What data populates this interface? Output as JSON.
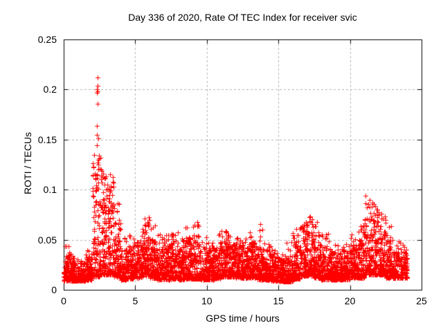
{
  "chart_data": {
    "type": "scatter",
    "title": "Day 336 of 2020, Rate Of TEC Index for receiver svic",
    "xlabel": "GPS time / hours",
    "ylabel": "ROTI / TECUs",
    "series_name": "ROTI",
    "xlim": [
      0,
      25
    ],
    "ylim": [
      0,
      0.25
    ],
    "xticks": [
      0,
      5,
      10,
      15,
      20,
      25
    ],
    "xtick_labels": [
      "0",
      "5",
      "10",
      "15",
      "20",
      "25"
    ],
    "yticks": [
      0,
      0.05,
      0.1,
      0.15,
      0.2,
      0.25
    ],
    "ytick_labels": [
      "0",
      "0.05",
      "0.1",
      "0.15",
      "0.2",
      "0.25"
    ],
    "grid": {
      "show": true,
      "color": "#b0b0b0",
      "dash": [
        3,
        3
      ]
    },
    "marker": {
      "shape": "plus",
      "color": "#ff0000",
      "size": 7
    },
    "legend": null,
    "seed": 336,
    "bin_format": [
      "t0_hours",
      "t1_hours",
      "n_points",
      "bulk_min",
      "bulk_max",
      "peak_max",
      "peak_fraction"
    ],
    "envelope_bins": [
      [
        0.0,
        0.5,
        100,
        0.009,
        0.038,
        0.044,
        0.06
      ],
      [
        0.5,
        1.0,
        100,
        0.009,
        0.03,
        0.036,
        0.05
      ],
      [
        1.0,
        1.5,
        100,
        0.009,
        0.027,
        0.033,
        0.05
      ],
      [
        1.5,
        2.0,
        100,
        0.01,
        0.032,
        0.04,
        0.06
      ],
      [
        2.0,
        2.5,
        110,
        0.013,
        0.085,
        0.135,
        0.22
      ],
      [
        2.5,
        3.0,
        115,
        0.015,
        0.082,
        0.122,
        0.22
      ],
      [
        3.0,
        3.5,
        115,
        0.015,
        0.078,
        0.116,
        0.18
      ],
      [
        3.5,
        4.0,
        105,
        0.013,
        0.058,
        0.092,
        0.12
      ],
      [
        4.0,
        4.5,
        100,
        0.01,
        0.04,
        0.055,
        0.07
      ],
      [
        4.5,
        5.0,
        100,
        0.011,
        0.045,
        0.058,
        0.07
      ],
      [
        5.0,
        5.5,
        100,
        0.012,
        0.048,
        0.062,
        0.08
      ],
      [
        5.5,
        6.0,
        105,
        0.014,
        0.058,
        0.078,
        0.1
      ],
      [
        6.0,
        6.5,
        100,
        0.012,
        0.05,
        0.066,
        0.08
      ],
      [
        6.5,
        7.0,
        100,
        0.01,
        0.042,
        0.056,
        0.06
      ],
      [
        7.0,
        7.5,
        100,
        0.01,
        0.045,
        0.058,
        0.07
      ],
      [
        7.5,
        8.0,
        100,
        0.011,
        0.048,
        0.06,
        0.07
      ],
      [
        8.0,
        8.5,
        100,
        0.01,
        0.04,
        0.052,
        0.06
      ],
      [
        8.5,
        9.0,
        105,
        0.011,
        0.052,
        0.066,
        0.08
      ],
      [
        9.0,
        9.5,
        105,
        0.011,
        0.055,
        0.068,
        0.08
      ],
      [
        9.5,
        10.0,
        100,
        0.01,
        0.042,
        0.056,
        0.06
      ],
      [
        10.0,
        10.5,
        100,
        0.01,
        0.04,
        0.05,
        0.06
      ],
      [
        10.5,
        11.0,
        100,
        0.011,
        0.042,
        0.056,
        0.06
      ],
      [
        11.0,
        11.5,
        105,
        0.013,
        0.048,
        0.062,
        0.07
      ],
      [
        11.5,
        12.0,
        105,
        0.013,
        0.046,
        0.058,
        0.07
      ],
      [
        12.0,
        12.5,
        100,
        0.012,
        0.045,
        0.056,
        0.06
      ],
      [
        12.5,
        13.0,
        100,
        0.012,
        0.042,
        0.052,
        0.06
      ],
      [
        13.0,
        13.5,
        100,
        0.012,
        0.048,
        0.06,
        0.07
      ],
      [
        13.5,
        14.0,
        100,
        0.01,
        0.044,
        0.066,
        0.07
      ],
      [
        14.0,
        14.5,
        100,
        0.01,
        0.04,
        0.052,
        0.06
      ],
      [
        14.5,
        15.0,
        95,
        0.009,
        0.034,
        0.044,
        0.05
      ],
      [
        15.0,
        15.5,
        95,
        0.008,
        0.03,
        0.04,
        0.05
      ],
      [
        15.5,
        16.0,
        95,
        0.008,
        0.035,
        0.048,
        0.06
      ],
      [
        16.0,
        16.5,
        105,
        0.011,
        0.05,
        0.064,
        0.08
      ],
      [
        16.5,
        17.0,
        110,
        0.014,
        0.06,
        0.072,
        0.1
      ],
      [
        17.0,
        17.5,
        110,
        0.014,
        0.058,
        0.075,
        0.1
      ],
      [
        17.5,
        18.0,
        100,
        0.012,
        0.048,
        0.07,
        0.08
      ],
      [
        18.0,
        18.5,
        100,
        0.01,
        0.044,
        0.066,
        0.07
      ],
      [
        18.5,
        19.0,
        100,
        0.01,
        0.04,
        0.05,
        0.06
      ],
      [
        19.0,
        19.5,
        100,
        0.01,
        0.038,
        0.048,
        0.05
      ],
      [
        19.5,
        20.0,
        100,
        0.01,
        0.04,
        0.05,
        0.06
      ],
      [
        20.0,
        20.5,
        100,
        0.012,
        0.045,
        0.058,
        0.07
      ],
      [
        20.5,
        21.0,
        105,
        0.012,
        0.05,
        0.066,
        0.08
      ],
      [
        21.0,
        21.5,
        110,
        0.015,
        0.068,
        0.088,
        0.14
      ],
      [
        21.5,
        22.0,
        110,
        0.015,
        0.066,
        0.086,
        0.14
      ],
      [
        22.0,
        22.5,
        110,
        0.015,
        0.06,
        0.08,
        0.12
      ],
      [
        22.5,
        23.0,
        100,
        0.012,
        0.05,
        0.066,
        0.08
      ],
      [
        23.0,
        23.5,
        100,
        0.012,
        0.04,
        0.05,
        0.06
      ],
      [
        23.5,
        24.0,
        100,
        0.012,
        0.038,
        0.046,
        0.05
      ]
    ],
    "outliers": [
      [
        2.35,
        0.212
      ],
      [
        2.36,
        0.204
      ],
      [
        2.34,
        0.2
      ],
      [
        2.36,
        0.198
      ],
      [
        2.33,
        0.197
      ],
      [
        2.35,
        0.186
      ],
      [
        2.34,
        0.164
      ],
      [
        2.31,
        0.155
      ],
      [
        2.4,
        0.151
      ],
      [
        2.3,
        0.144
      ],
      [
        2.46,
        0.134
      ],
      [
        2.56,
        0.132
      ],
      [
        2.35,
        0.127
      ],
      [
        2.5,
        0.121
      ],
      [
        2.6,
        0.12
      ],
      [
        3.25,
        0.115
      ],
      [
        2.95,
        0.113
      ],
      [
        3.45,
        0.108
      ],
      [
        2.85,
        0.105
      ],
      [
        21.1,
        0.094
      ],
      [
        21.35,
        0.09
      ],
      [
        21.55,
        0.087
      ]
    ]
  }
}
